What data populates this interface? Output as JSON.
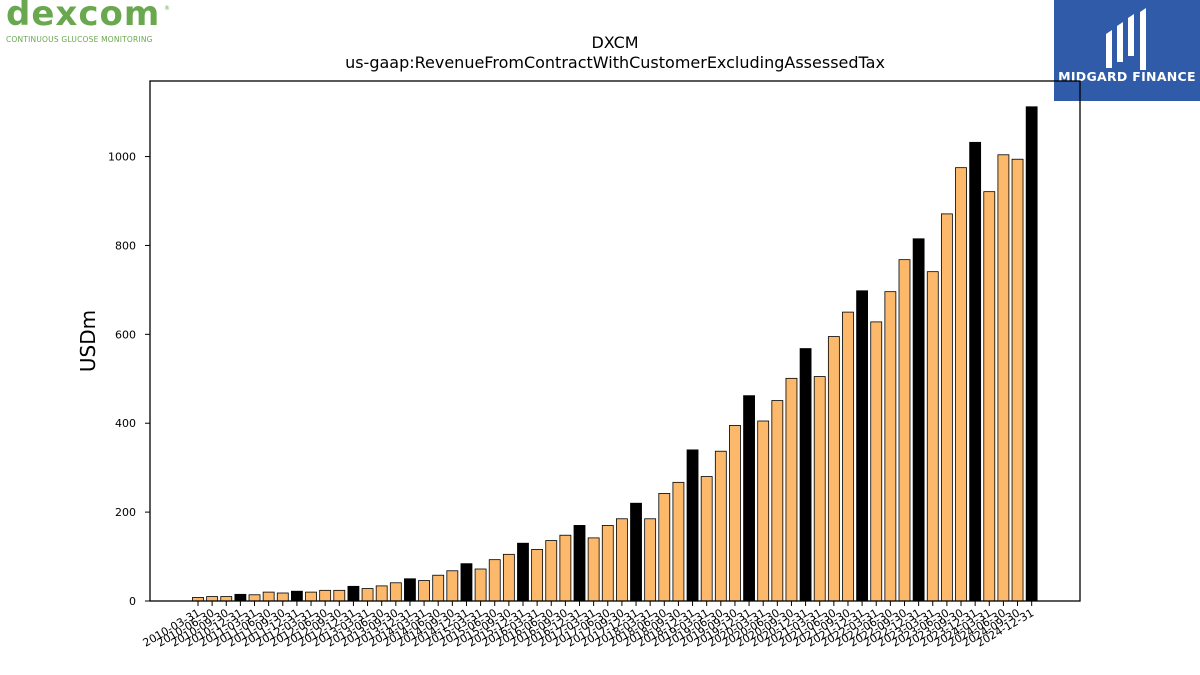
{
  "header": {
    "left_logo": {
      "wordmark": "dexcom",
      "tagline": "CONTINUOUS GLUCOSE MONITORING",
      "reg_mark": "®",
      "color": "#6aa84f"
    },
    "right_logo": {
      "name": "MIDGARD FINANCE",
      "bg_color": "#2f5ba8",
      "text_color": "#ffffff"
    }
  },
  "chart_data": {
    "type": "bar",
    "title": "DXCM",
    "subtitle": "us-gaap:RevenueFromContractWithCustomerExcludingAssessedTax",
    "xlabel": "",
    "ylabel": "USDm",
    "ylim": [
      0,
      1170
    ],
    "yticks": [
      0,
      200,
      400,
      600,
      800,
      1000
    ],
    "grid": false,
    "colors": {
      "quarter": "#fdb96b",
      "annual": "#000000",
      "edge": "#000000"
    },
    "categories": [
      "2010-03-31",
      "2010-06-30",
      "2010-09-30",
      "2010-12-31",
      "2011-03-31",
      "2011-06-30",
      "2011-09-30",
      "2011-12-31",
      "2012-03-31",
      "2012-06-30",
      "2012-09-30",
      "2012-12-31",
      "2013-03-31",
      "2013-06-30",
      "2013-09-30",
      "2013-12-31",
      "2014-03-31",
      "2014-06-30",
      "2014-09-30",
      "2014-12-31",
      "2015-03-31",
      "2015-06-30",
      "2015-09-30",
      "2015-12-31",
      "2016-03-31",
      "2016-06-30",
      "2016-09-30",
      "2016-12-31",
      "2017-03-31",
      "2017-06-30",
      "2017-09-30",
      "2017-12-31",
      "2018-03-31",
      "2018-06-30",
      "2018-09-30",
      "2018-12-31",
      "2019-03-31",
      "2019-06-30",
      "2019-09-30",
      "2019-12-31",
      "2020-03-31",
      "2020-06-30",
      "2020-09-30",
      "2020-12-31",
      "2021-03-31",
      "2021-06-30",
      "2021-09-30",
      "2021-12-31",
      "2022-03-31",
      "2022-06-30",
      "2022-09-30",
      "2022-12-31",
      "2023-03-31",
      "2023-06-30",
      "2023-09-30",
      "2023-12-31",
      "2024-03-31",
      "2024-06-30",
      "2024-09-30",
      "2024-12-31"
    ],
    "values": [
      8,
      10,
      10,
      15,
      14,
      20,
      18,
      22,
      20,
      24,
      24,
      33,
      28,
      34,
      41,
      50,
      46,
      58,
      68,
      84,
      72,
      93,
      105,
      130,
      116,
      136,
      148,
      170,
      142,
      170,
      185,
      220,
      185,
      242,
      267,
      340,
      280,
      337,
      395,
      462,
      405,
      451,
      501,
      568,
      505,
      595,
      650,
      698,
      628,
      696,
      768,
      815,
      741,
      871,
      975,
      1032,
      921,
      1004,
      994,
      1112
    ],
    "annual_flags": [
      false,
      false,
      false,
      true,
      false,
      false,
      false,
      true,
      false,
      false,
      false,
      true,
      false,
      false,
      false,
      true,
      false,
      false,
      false,
      true,
      false,
      false,
      false,
      true,
      false,
      false,
      false,
      true,
      false,
      false,
      false,
      true,
      false,
      false,
      false,
      true,
      false,
      false,
      false,
      true,
      false,
      false,
      false,
      true,
      false,
      false,
      false,
      true,
      false,
      false,
      false,
      true,
      false,
      false,
      false,
      true,
      false,
      false,
      false,
      true
    ]
  }
}
